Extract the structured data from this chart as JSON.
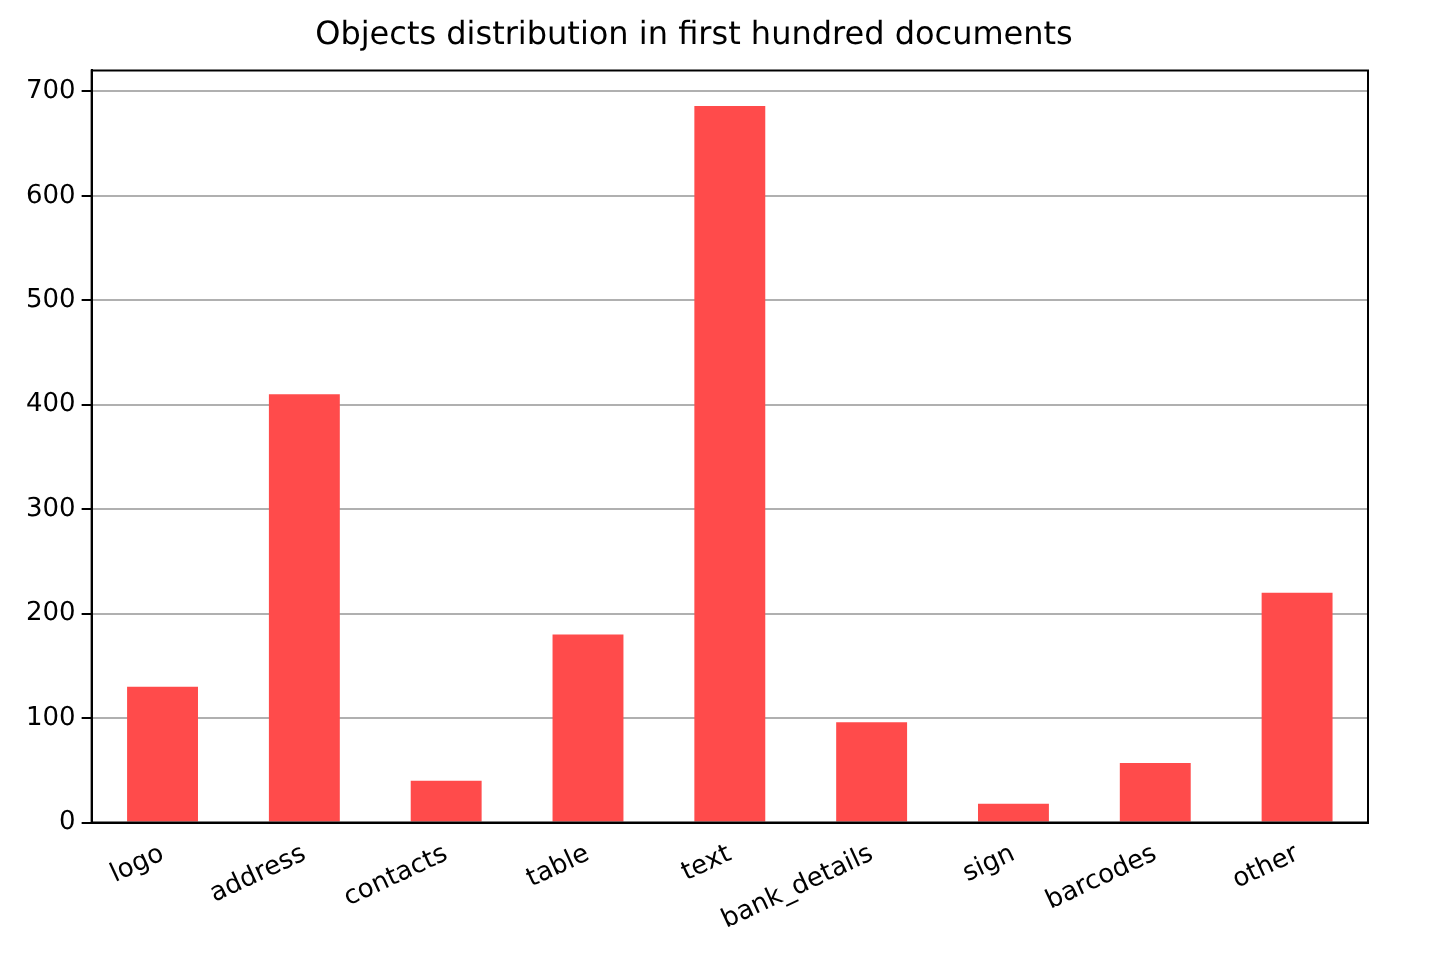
{
  "chart_data": {
    "type": "bar",
    "title": "Objects distribution in first hundred documents",
    "categories": [
      "logo",
      "address",
      "contacts",
      "table",
      "text",
      "bank_details",
      "sign",
      "barcodes",
      "other"
    ],
    "values": [
      130,
      410,
      40,
      180,
      686,
      96,
      18,
      57,
      220
    ],
    "color": "#ff4b4b",
    "ylim": [
      0,
      720
    ],
    "yticks": [
      0,
      100,
      200,
      300,
      400,
      500,
      600,
      700
    ],
    "grid": "y",
    "legend": false
  }
}
